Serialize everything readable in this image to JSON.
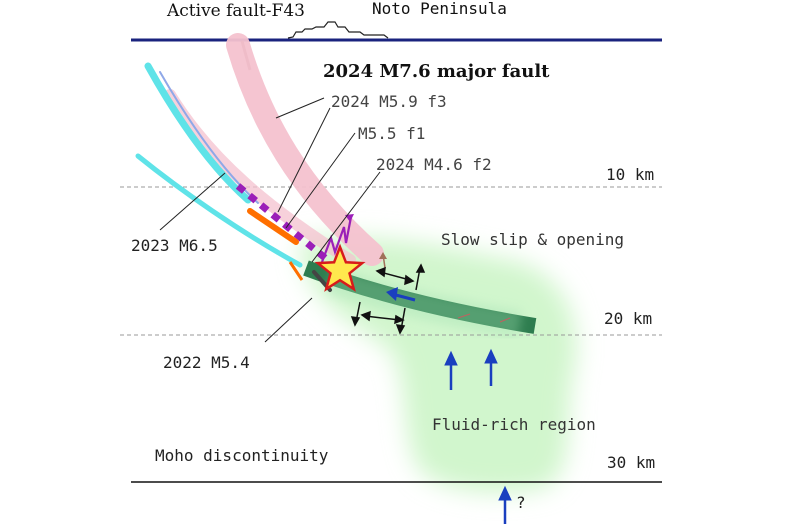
{
  "surface": {
    "fault_label": "Active fault-F43",
    "peninsula_label": "Noto Peninsula"
  },
  "depths": [
    {
      "label": "10 km",
      "depth_km": 10
    },
    {
      "label": "20 km",
      "depth_km": 20
    },
    {
      "label": "30 km",
      "depth_km": 30
    }
  ],
  "faults": {
    "major": "2024 M7.6 major fault",
    "f3": "2024 M5.9 f3",
    "f1": "M5.5 f1",
    "f2": "2024 M4.6 f2",
    "m65": "2023 M6.5",
    "m54": "2022 M5.4"
  },
  "annotations": {
    "slow_slip": "Slow slip & opening",
    "fluid_region": "Fluid-rich region",
    "moho": "Moho discontinuity",
    "unknown_source": "?"
  },
  "colors": {
    "surface_line": "#1a237e",
    "major_fault_band": "#f4c2cf",
    "m65_fault": "#5fe3e8",
    "slow_slip_zone": "#2e7d4f",
    "fluid_region": "#ccf5c8",
    "fluid_arrow": "#1a3fbf",
    "f3_fault": "#9b1fb8",
    "f1_fault": "#ff6f00",
    "mainshock_star_fill": "#ffe84d",
    "mainshock_star_edge": "#d81b1b",
    "depth_line": "#999999"
  }
}
